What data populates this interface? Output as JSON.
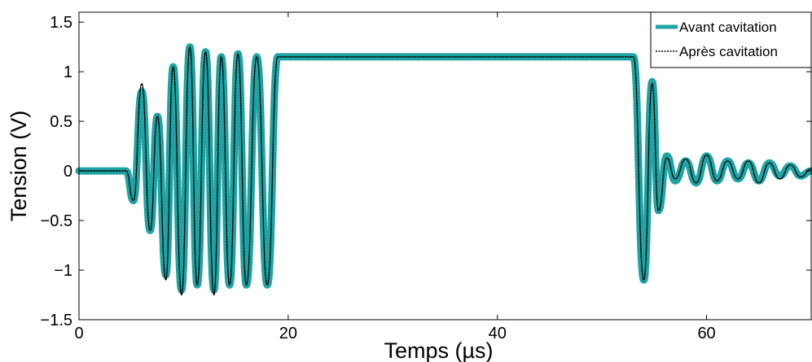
{
  "chart_data": {
    "type": "line",
    "xlabel": "Temps (µs)",
    "ylabel": "Tension (V)",
    "xlim": [
      0,
      70
    ],
    "ylim": [
      -1.5,
      1.6
    ],
    "x_ticks": [
      0,
      20,
      40,
      60
    ],
    "y_ticks": [
      -1.5,
      -1,
      -0.5,
      0,
      0.5,
      1,
      1.5
    ],
    "x_tick_labels": [
      "0",
      "20",
      "40",
      "60"
    ],
    "y_tick_labels": [
      "−1.5",
      "−1",
      "−0.5",
      "0",
      "0.5",
      "1",
      "1.5"
    ],
    "grid": false,
    "legend_position": "top-right",
    "series": [
      {
        "name": "Avant cavitation",
        "color": "#1fa3a3",
        "style": "thick-solid",
        "x": [
          0,
          4.5,
          5.2,
          6.0,
          6.8,
          7.5,
          8.3,
          9.0,
          9.8,
          10.6,
          11.3,
          12.1,
          12.9,
          13.6,
          14.4,
          15.2,
          16.0,
          17.0,
          18.0,
          19.0,
          20.0,
          25.0,
          30.0,
          35.0,
          40.0,
          45.0,
          50.0,
          53.0,
          54.0,
          54.8,
          55.4,
          56.2,
          57.0,
          58.0,
          59.0,
          60.0,
          61.0,
          62.0,
          63.0,
          64.0,
          65.0,
          66.0,
          67.0,
          68.0,
          69.0,
          70.0
        ],
        "y": [
          0,
          0,
          -0.3,
          0.8,
          -0.6,
          0.55,
          -1.05,
          1.05,
          -1.2,
          1.25,
          -1.15,
          1.2,
          -1.2,
          1.15,
          -1.15,
          1.18,
          -1.15,
          1.15,
          -1.15,
          1.15,
          1.15,
          1.15,
          1.15,
          1.15,
          1.15,
          1.15,
          1.15,
          1.15,
          -1.1,
          0.9,
          -0.4,
          0.15,
          -0.1,
          0.1,
          -0.12,
          0.15,
          -0.1,
          0.1,
          -0.08,
          0.08,
          -0.1,
          0.08,
          -0.05,
          0.05,
          -0.05,
          0
        ]
      },
      {
        "name": "Après cavitation",
        "color": "#000000",
        "style": "dotted",
        "x": [
          0,
          4.5,
          5.2,
          6.0,
          6.8,
          7.5,
          8.3,
          9.0,
          9.8,
          10.6,
          11.3,
          12.1,
          12.9,
          13.6,
          14.4,
          15.2,
          16.0,
          17.0,
          18.0,
          19.0,
          20.0,
          25.0,
          30.0,
          35.0,
          40.0,
          45.0,
          50.0,
          53.0,
          54.0,
          54.8,
          55.4,
          56.2,
          57.0,
          58.0,
          59.0,
          60.0,
          61.0,
          62.0,
          63.0,
          64.0,
          65.0,
          66.0,
          67.0,
          68.0,
          69.0,
          70.0
        ],
        "y": [
          0,
          0,
          -0.3,
          0.88,
          -0.6,
          0.55,
          -1.1,
          1.05,
          -1.25,
          1.25,
          -1.15,
          1.2,
          -1.25,
          1.15,
          -1.15,
          1.18,
          -1.15,
          1.15,
          -1.15,
          1.15,
          1.15,
          1.15,
          1.15,
          1.15,
          1.15,
          1.15,
          1.15,
          1.15,
          -1.1,
          0.88,
          -0.4,
          0.13,
          -0.08,
          0.12,
          -0.12,
          0.16,
          -0.1,
          0.1,
          -0.08,
          0.1,
          -0.12,
          0.08,
          -0.08,
          0.06,
          -0.06,
          0.02
        ]
      }
    ]
  }
}
